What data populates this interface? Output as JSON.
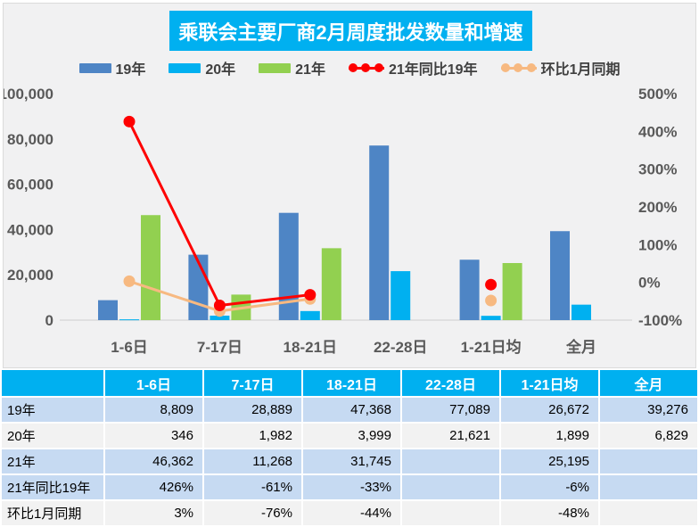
{
  "title": "乘联会主要厂商2月周度批发数量和增速",
  "colors": {
    "accent": "#00B0F0",
    "bar_blue": "#4E85C5",
    "bar_cyan": "#00B0F0",
    "bar_green": "#92D050",
    "line_red": "#FE0000",
    "line_peach": "#F7B981",
    "axis_text": "#595959",
    "axis_line": "#D9D9D9",
    "row_blue": "#C6DAF2",
    "row_gray": "#F2F2F2",
    "chart_bg": "#F1F1F2"
  },
  "chart_data": {
    "type": "bar",
    "subtype": "combo-bar-line-dual-axis",
    "title": "乘联会主要厂商2月周度批发数量和增速",
    "categories": [
      "1-6日",
      "7-17日",
      "18-21日",
      "22-28日",
      "1-21日均",
      "全月"
    ],
    "bar_series": [
      {
        "name": "19年",
        "color": "#4E85C5",
        "values": [
          8809,
          28889,
          47368,
          77089,
          26672,
          39276
        ]
      },
      {
        "name": "20年",
        "color": "#00B0F0",
        "values": [
          346,
          1982,
          3999,
          21621,
          1899,
          6829
        ]
      },
      {
        "name": "21年",
        "color": "#92D050",
        "values": [
          46362,
          11268,
          31745,
          null,
          25195,
          null
        ]
      }
    ],
    "line_series": [
      {
        "name": "21年同比19年",
        "color": "#FE0000",
        "values": [
          426,
          -61,
          -33,
          null,
          -6,
          null
        ]
      },
      {
        "name": "环比1月同期",
        "color": "#F7B981",
        "values": [
          3,
          -76,
          -44,
          null,
          -48,
          null
        ]
      }
    ],
    "left_axis": {
      "min": 0,
      "max": 100000,
      "step": 20000,
      "tick_labels": [
        "0",
        "20,000",
        "40,000",
        "60,000",
        "80,000",
        "100,000"
      ]
    },
    "right_axis": {
      "min": -100,
      "max": 500,
      "step": 100,
      "format": "percent",
      "tick_labels": [
        "-100%",
        "0%",
        "100%",
        "200%",
        "300%",
        "400%",
        "500%"
      ]
    },
    "grid": false,
    "legend_position": "top",
    "legend": [
      {
        "label": "19年",
        "type": "bar",
        "color": "#4E85C5"
      },
      {
        "label": "20年",
        "type": "bar",
        "color": "#00B0F0"
      },
      {
        "label": "21年",
        "type": "bar",
        "color": "#92D050"
      },
      {
        "label": "21年同比19年",
        "type": "line",
        "color": "#FE0000"
      },
      {
        "label": "环比1月同期",
        "type": "line",
        "color": "#F7B981"
      }
    ]
  },
  "table": {
    "columns": [
      "",
      "1-6日",
      "7-17日",
      "18-21日",
      "22-28日",
      "1-21日均",
      "全月"
    ],
    "rows": [
      {
        "label": "19年",
        "band": "blue",
        "cells": [
          "8,809",
          "28,889",
          "47,368",
          "77,089",
          "26,672",
          "39,276"
        ]
      },
      {
        "label": "20年",
        "band": "gray",
        "cells": [
          "346",
          "1,982",
          "3,999",
          "21,621",
          "1,899",
          "6,829"
        ]
      },
      {
        "label": "21年",
        "band": "blue",
        "cells": [
          "46,362",
          "11,268",
          "31,745",
          "",
          "25,195",
          ""
        ]
      },
      {
        "label": "21年同比19年",
        "band": "blue",
        "cells": [
          "426%",
          "-61%",
          "-33%",
          "",
          "-6%",
          ""
        ]
      },
      {
        "label": "环比1月同期",
        "band": "gray",
        "cells": [
          "3%",
          "-76%",
          "-44%",
          "",
          "-48%",
          ""
        ]
      }
    ]
  }
}
